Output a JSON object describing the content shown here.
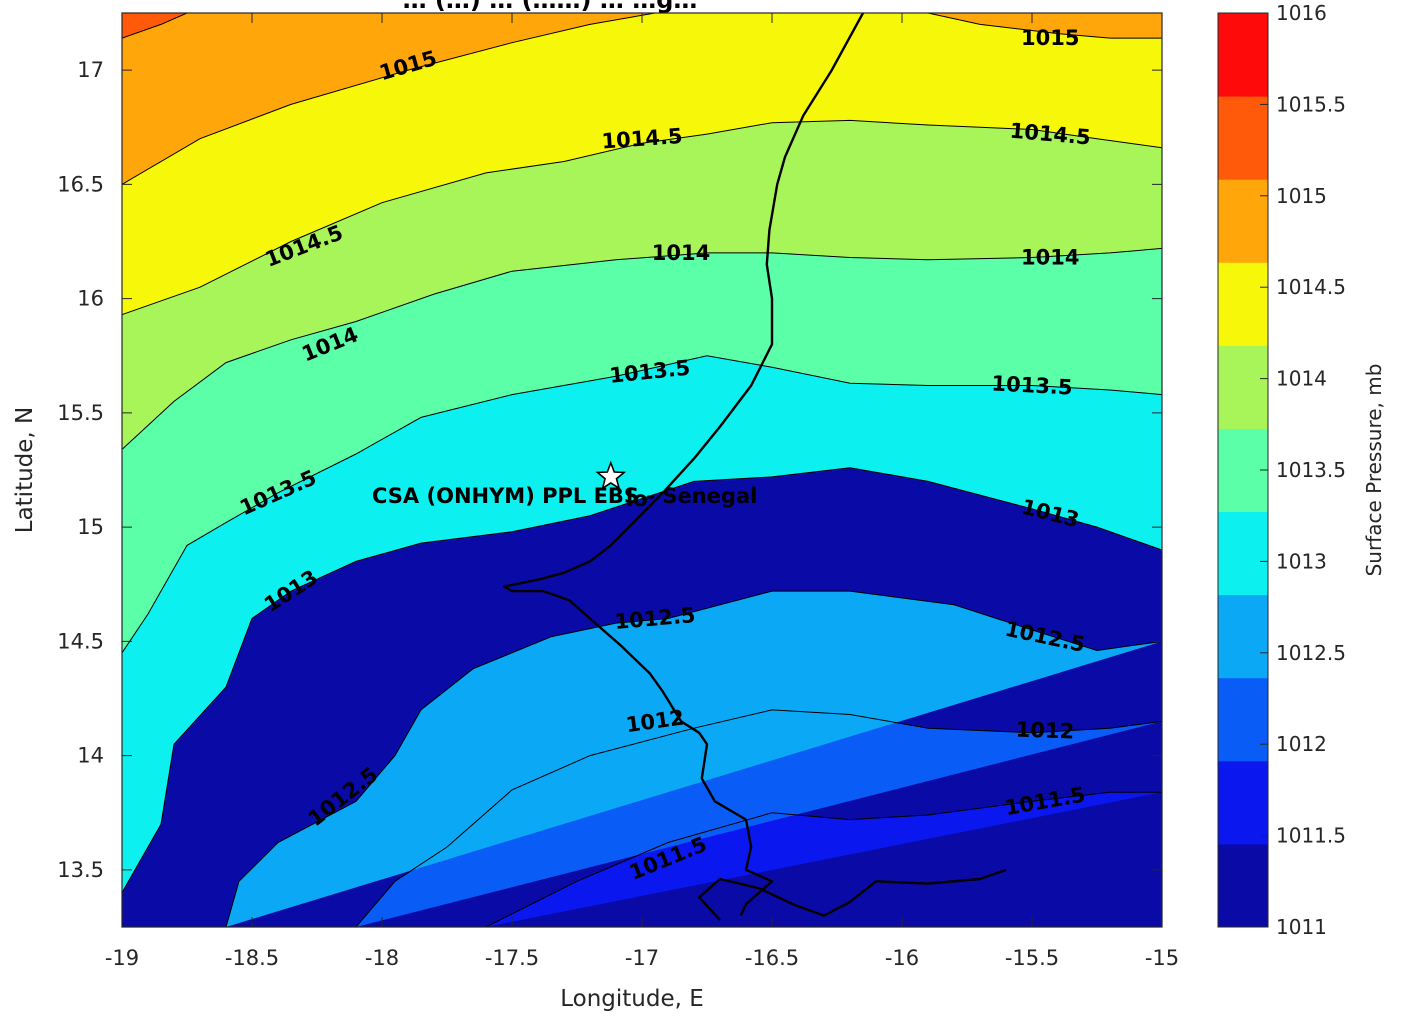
{
  "chart_data": {
    "type": "filled-contour",
    "title": "… (…) … (……) … …g…",
    "xlabel": "Longitude, E",
    "ylabel": "Latitude, N",
    "xlim": [
      -19,
      -15
    ],
    "ylim": [
      13.25,
      17.25
    ],
    "x_ticks": [
      "-19",
      "-18.5",
      "-18",
      "-17.5",
      "-17",
      "-16.5",
      "-16",
      "-15.5",
      "-15"
    ],
    "y_ticks": [
      "13.5",
      "14",
      "14.5",
      "15",
      "15.5",
      "16",
      "16.5",
      "17"
    ],
    "colorbar": {
      "label": "Surface Pressure, mb",
      "ticks": [
        "1011",
        "1011.5",
        "1012",
        "1012.5",
        "1013",
        "1013.5",
        "1014",
        "1014.5",
        "1015",
        "1015.5",
        "1016"
      ],
      "levels": [
        {
          "low": 1011,
          "high": 1011.5,
          "color": "#0a0aa6"
        },
        {
          "low": 1011.5,
          "high": 1012,
          "color": "#0b17ef"
        },
        {
          "low": 1012,
          "high": 1012.5,
          "color": "#0a5cf7"
        },
        {
          "low": 1012.5,
          "high": 1013,
          "color": "#0aa8f5"
        },
        {
          "low": 1013,
          "high": 1013.5,
          "color": "#0cf0f0"
        },
        {
          "low": 1013.5,
          "high": 1014,
          "color": "#5affa8"
        },
        {
          "low": 1014,
          "high": 1014.5,
          "color": "#a8f55a"
        },
        {
          "low": 1014.5,
          "high": 1015,
          "color": "#f7f70a"
        },
        {
          "low": 1015,
          "high": 1015.5,
          "color": "#ffa60a"
        },
        {
          "low": 1015.5,
          "high": 1016,
          "color": "#ff5a0a"
        },
        {
          "low": 1016,
          "high": 1016.5,
          "color": "#ff0a0a"
        }
      ]
    },
    "contours": [
      {
        "level": 1011.5,
        "points": [
          [
            -17.6,
            13.25
          ],
          [
            -17.25,
            13.45
          ],
          [
            -16.9,
            13.62
          ],
          [
            -16.5,
            13.75
          ],
          [
            -16.2,
            13.72
          ],
          [
            -15.9,
            13.74
          ],
          [
            -15.5,
            13.8
          ],
          [
            -15.2,
            13.84
          ],
          [
            -15.0,
            13.84
          ]
        ]
      },
      {
        "level": 1012,
        "points": [
          [
            -18.1,
            13.25
          ],
          [
            -17.95,
            13.45
          ],
          [
            -17.75,
            13.6
          ],
          [
            -17.5,
            13.85
          ],
          [
            -17.2,
            14.0
          ],
          [
            -16.8,
            14.12
          ],
          [
            -16.5,
            14.2
          ],
          [
            -16.2,
            14.18
          ],
          [
            -15.9,
            14.12
          ],
          [
            -15.5,
            14.1
          ],
          [
            -15.2,
            14.12
          ],
          [
            -15.0,
            14.15
          ]
        ]
      },
      {
        "level": 1012.5,
        "points": [
          [
            -18.6,
            13.25
          ],
          [
            -18.55,
            13.45
          ],
          [
            -18.4,
            13.62
          ],
          [
            -18.1,
            13.8
          ],
          [
            -17.95,
            14.0
          ],
          [
            -17.85,
            14.2
          ],
          [
            -17.65,
            14.38
          ],
          [
            -17.35,
            14.52
          ],
          [
            -17.1,
            14.58
          ],
          [
            -16.9,
            14.6
          ],
          [
            -16.5,
            14.72
          ],
          [
            -16.2,
            14.72
          ],
          [
            -15.8,
            14.66
          ],
          [
            -15.5,
            14.55
          ],
          [
            -15.25,
            14.46
          ],
          [
            -15.0,
            14.5
          ]
        ]
      },
      {
        "level": 1013,
        "points": [
          [
            -19.0,
            13.4
          ],
          [
            -18.85,
            13.7
          ],
          [
            -18.8,
            14.05
          ],
          [
            -18.6,
            14.3
          ],
          [
            -18.5,
            14.6
          ],
          [
            -18.35,
            14.72
          ],
          [
            -18.1,
            14.85
          ],
          [
            -17.85,
            14.93
          ],
          [
            -17.5,
            14.98
          ],
          [
            -17.2,
            15.05
          ],
          [
            -16.8,
            15.2
          ],
          [
            -16.5,
            15.22
          ],
          [
            -16.2,
            15.26
          ],
          [
            -15.9,
            15.2
          ],
          [
            -15.5,
            15.08
          ],
          [
            -15.25,
            15.0
          ],
          [
            -15.0,
            14.9
          ]
        ]
      },
      {
        "level": 1013.5,
        "points": [
          [
            -19.0,
            14.45
          ],
          [
            -18.9,
            14.62
          ],
          [
            -18.75,
            14.92
          ],
          [
            -18.6,
            15.02
          ],
          [
            -18.4,
            15.15
          ],
          [
            -18.1,
            15.32
          ],
          [
            -17.85,
            15.48
          ],
          [
            -17.5,
            15.58
          ],
          [
            -17.1,
            15.66
          ],
          [
            -16.75,
            15.75
          ],
          [
            -16.5,
            15.7
          ],
          [
            -16.2,
            15.63
          ],
          [
            -15.9,
            15.62
          ],
          [
            -15.5,
            15.62
          ],
          [
            -15.2,
            15.6
          ],
          [
            -15.0,
            15.58
          ]
        ]
      },
      {
        "level": 1014,
        "points": [
          [
            -19.0,
            15.34
          ],
          [
            -18.8,
            15.55
          ],
          [
            -18.6,
            15.72
          ],
          [
            -18.35,
            15.82
          ],
          [
            -18.1,
            15.9
          ],
          [
            -17.8,
            16.02
          ],
          [
            -17.5,
            16.12
          ],
          [
            -17.1,
            16.17
          ],
          [
            -16.75,
            16.2
          ],
          [
            -16.5,
            16.2
          ],
          [
            -16.2,
            16.18
          ],
          [
            -15.9,
            16.17
          ],
          [
            -15.5,
            16.18
          ],
          [
            -15.2,
            16.2
          ],
          [
            -15.0,
            16.22
          ]
        ]
      },
      {
        "level": 1014.5,
        "points": [
          [
            -19.0,
            15.93
          ],
          [
            -18.7,
            16.05
          ],
          [
            -18.35,
            16.25
          ],
          [
            -18.0,
            16.42
          ],
          [
            -17.6,
            16.55
          ],
          [
            -17.3,
            16.6
          ],
          [
            -17.0,
            16.68
          ],
          [
            -16.75,
            16.72
          ],
          [
            -16.5,
            16.77
          ],
          [
            -16.2,
            16.78
          ],
          [
            -15.9,
            16.76
          ],
          [
            -15.5,
            16.74
          ],
          [
            -15.25,
            16.7
          ],
          [
            -15.0,
            16.66
          ]
        ]
      },
      {
        "level": 1015,
        "points": [
          [
            -19.0,
            16.5
          ],
          [
            -18.7,
            16.7
          ],
          [
            -18.35,
            16.85
          ],
          [
            -17.9,
            17.0
          ],
          [
            -17.5,
            17.12
          ],
          [
            -17.2,
            17.2
          ],
          [
            -16.95,
            17.25
          ]
        ]
      },
      {
        "level": 1015,
        "points": [
          [
            -15.9,
            17.25
          ],
          [
            -15.7,
            17.2
          ],
          [
            -15.4,
            17.16
          ],
          [
            -15.2,
            17.14
          ],
          [
            -15.0,
            17.14
          ]
        ]
      },
      {
        "level": 1015.5,
        "points": [
          [
            -19.0,
            17.14
          ],
          [
            -18.85,
            17.2
          ],
          [
            -18.75,
            17.25
          ]
        ]
      }
    ],
    "contour_labels": [
      {
        "text": "1015",
        "lon": -17.9,
        "lat": 17.02,
        "angle": -16
      },
      {
        "text": "1015",
        "lon": -15.43,
        "lat": 17.14,
        "angle": 0
      },
      {
        "text": "1014.5",
        "lon": -17.0,
        "lat": 16.7,
        "angle": -4
      },
      {
        "text": "1014.5",
        "lon": -15.43,
        "lat": 16.72,
        "angle": 5
      },
      {
        "text": "1014.5",
        "lon": -18.3,
        "lat": 16.23,
        "angle": -21
      },
      {
        "text": "1014",
        "lon": -16.85,
        "lat": 16.2,
        "angle": 0
      },
      {
        "text": "1014",
        "lon": -15.43,
        "lat": 16.18,
        "angle": 0
      },
      {
        "text": "1014",
        "lon": -18.2,
        "lat": 15.8,
        "angle": -22
      },
      {
        "text": "1013.5",
        "lon": -16.97,
        "lat": 15.68,
        "angle": -6
      },
      {
        "text": "1013.5",
        "lon": -15.5,
        "lat": 15.62,
        "angle": 3
      },
      {
        "text": "1013.5",
        "lon": -18.4,
        "lat": 15.15,
        "angle": -24
      },
      {
        "text": "1013",
        "lon": -15.43,
        "lat": 15.06,
        "angle": 14
      },
      {
        "text": "1013",
        "lon": -18.35,
        "lat": 14.72,
        "angle": -33
      },
      {
        "text": "1012.5",
        "lon": -16.95,
        "lat": 14.6,
        "angle": -5
      },
      {
        "text": "1012.5",
        "lon": -15.45,
        "lat": 14.52,
        "angle": 12
      },
      {
        "text": "1012.5",
        "lon": -18.15,
        "lat": 13.82,
        "angle": -38
      },
      {
        "text": "1012",
        "lon": -16.95,
        "lat": 14.15,
        "angle": -8
      },
      {
        "text": "1012",
        "lon": -15.45,
        "lat": 14.11,
        "angle": 2
      },
      {
        "text": "1011.5",
        "lon": -16.9,
        "lat": 13.55,
        "angle": -22
      },
      {
        "text": "1011.5",
        "lon": -15.45,
        "lat": 13.8,
        "angle": -10
      }
    ],
    "coastline": [
      [
        [
          -16.15,
          17.25
        ],
        [
          -16.27,
          17.0
        ],
        [
          -16.38,
          16.8
        ],
        [
          -16.45,
          16.62
        ],
        [
          -16.48,
          16.5
        ],
        [
          -16.51,
          16.3
        ],
        [
          -16.52,
          16.15
        ],
        [
          -16.5,
          16.0
        ],
        [
          -16.5,
          15.8
        ],
        [
          -16.58,
          15.62
        ],
        [
          -16.7,
          15.44
        ],
        [
          -16.8,
          15.3
        ],
        [
          -16.92,
          15.15
        ],
        [
          -17.05,
          15.0
        ],
        [
          -17.12,
          14.92
        ],
        [
          -17.2,
          14.85
        ],
        [
          -17.3,
          14.8
        ],
        [
          -17.4,
          14.77
        ],
        [
          -17.53,
          14.74
        ],
        [
          -17.5,
          14.72
        ],
        [
          -17.38,
          14.72
        ],
        [
          -17.28,
          14.68
        ],
        [
          -17.18,
          14.58
        ],
        [
          -17.08,
          14.48
        ],
        [
          -16.97,
          14.36
        ],
        [
          -16.92,
          14.28
        ],
        [
          -16.85,
          14.15
        ],
        [
          -16.78,
          14.1
        ],
        [
          -16.75,
          14.05
        ],
        [
          -16.77,
          13.9
        ],
        [
          -16.72,
          13.8
        ],
        [
          -16.6,
          13.72
        ],
        [
          -16.58,
          13.6
        ],
        [
          -16.6,
          13.5
        ],
        [
          -16.5,
          13.45
        ],
        [
          -16.6,
          13.35
        ],
        [
          -16.62,
          13.3
        ]
      ],
      [
        [
          -16.7,
          13.28
        ],
        [
          -16.78,
          13.38
        ],
        [
          -16.7,
          13.46
        ],
        [
          -16.55,
          13.42
        ],
        [
          -16.42,
          13.35
        ],
        [
          -16.3,
          13.3
        ],
        [
          -16.2,
          13.36
        ],
        [
          -16.1,
          13.45
        ],
        [
          -15.9,
          13.44
        ],
        [
          -15.7,
          13.46
        ],
        [
          -15.6,
          13.5
        ]
      ]
    ],
    "site_marker": {
      "lon": -17.12,
      "lat": 15.22,
      "label": "CSA (ONHYM) PPL EBS  - Senegal",
      "label_overlap": "lo"
    }
  }
}
